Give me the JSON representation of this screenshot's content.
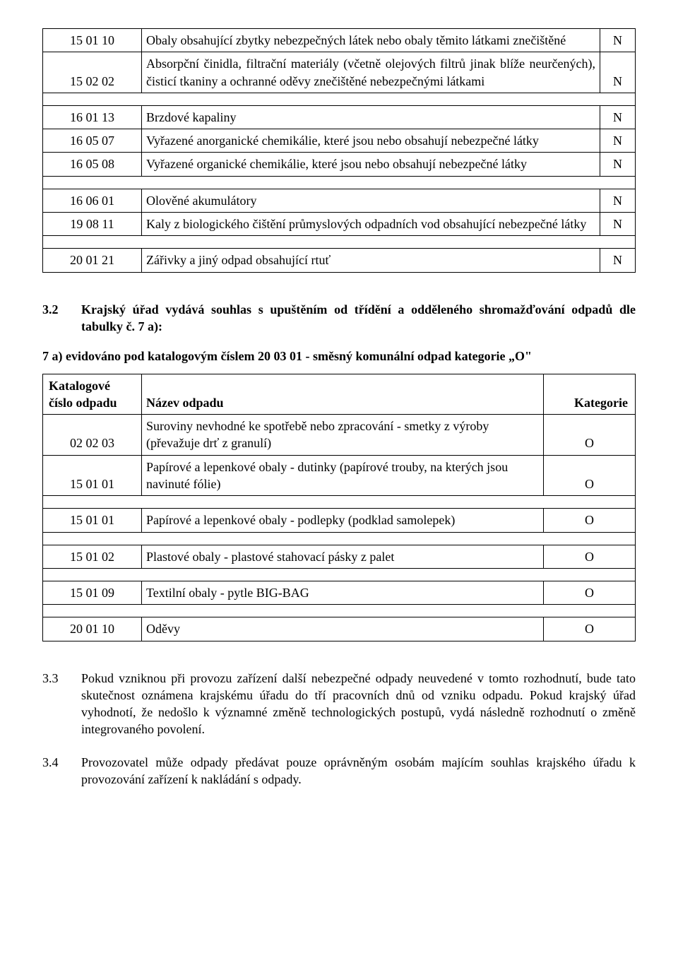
{
  "table1": {
    "rows": [
      {
        "code": "15 01 10",
        "desc": "Obaly obsahující zbytky nebezpečných látek nebo obaly těmito látkami znečištěné",
        "cat": "N",
        "justify": true
      },
      {
        "code": "15 02 02",
        "desc": "Absorpční činidla, filtrační materiály (včetně olejových filtrů jinak blíže neurčených), čisticí tkaniny a ochranné oděvy znečištěné nebezpečnými látkami",
        "cat": "N",
        "justify": true
      },
      {
        "spacer": true
      },
      {
        "code": "16 01 13",
        "desc": "Brzdové kapaliny",
        "cat": "N"
      },
      {
        "code": "16 05 07",
        "desc": "Vyřazené anorganické chemikálie, které jsou nebo obsahují nebezpečné látky",
        "cat": "N"
      },
      {
        "code": "16 05 08",
        "desc": "Vyřazené organické chemikálie, které jsou nebo obsahují nebezpečné látky",
        "cat": "N"
      },
      {
        "spacer": true
      },
      {
        "code": "16 06 01",
        "desc": "Olověné akumulátory",
        "cat": "N"
      },
      {
        "code": "19 08 11",
        "desc": "Kaly z biologického čištění průmyslových odpadních vod obsahující nebezpečné látky",
        "cat": "N",
        "justify": true
      },
      {
        "spacer": true
      },
      {
        "code": "20 01 21",
        "desc": "Zářivky a jiný odpad obsahující rtuť",
        "cat": "N"
      }
    ]
  },
  "section32": {
    "num": "3.2",
    "text": "Krajský úřad vydává souhlas s upuštěním od třídění a odděleného shromažďování odpadů dle tabulky č. 7 a):"
  },
  "subhead": "7 a) evidováno pod katalogovým číslem 20 03 01 - směsný komunální odpad kategorie „O\"",
  "table2": {
    "head": {
      "code": "Katalogové číslo odpadu",
      "desc": "Název odpadu",
      "cat": "Kategorie"
    },
    "rows": [
      {
        "code": "02 02 03",
        "desc": "Suroviny nevhodné ke spotřebě nebo zpracování - smetky z výroby (převažuje drť z granulí)",
        "cat": "O"
      },
      {
        "code": "15 01 01",
        "desc": "Papírové a lepenkové obaly - dutinky (papírové trouby, na kterých jsou navinuté fólie)",
        "cat": "O"
      },
      {
        "spacer": true
      },
      {
        "code": "15 01 01",
        "desc": "Papírové a lepenkové obaly - podlepky (podklad samolepek)",
        "cat": "O"
      },
      {
        "spacer": true
      },
      {
        "code": "15 01 02",
        "desc": "Plastové obaly - plastové stahovací pásky z palet",
        "cat": "O"
      },
      {
        "spacer": true
      },
      {
        "code": "15 01 09",
        "desc": "Textilní obaly - pytle BIG-BAG",
        "cat": "O"
      },
      {
        "spacer": true
      },
      {
        "code": "20 01 10",
        "desc": "Oděvy",
        "cat": "O"
      }
    ]
  },
  "section33": {
    "num": "3.3",
    "text": "Pokud vzniknou při provozu zařízení další nebezpečné odpady neuvedené v tomto rozhodnutí, bude tato skutečnost oznámena krajskému úřadu do tří pracovních dnů od vzniku odpadu. Pokud krajský úřad vyhodnotí, že nedošlo k významné změně technologických postupů, vydá následně rozhodnutí o změně integrovaného povolení."
  },
  "section34": {
    "num": "3.4",
    "text": "Provozovatel může odpady předávat pouze oprávněným osobám majícím souhlas krajského úřadu k provozování zařízení k nakládání s odpady."
  }
}
